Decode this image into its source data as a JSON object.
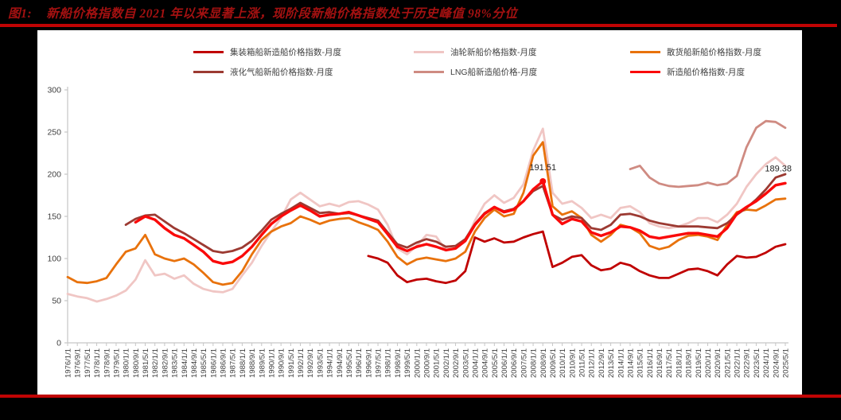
{
  "page": {
    "background": "#000000",
    "panel_background": "#FFFFFF",
    "rule_color": "#C00404",
    "title_color": "#A31111",
    "axis_color": "#C6C6C6",
    "tick_label_color": "#404040",
    "annotation_color": "#262626"
  },
  "figure": {
    "label": "图1:",
    "title": "新船价格指数自 2021 年以来显著上涨，现阶段新船价格指数处于历史峰值 98%分位"
  },
  "chart_data": {
    "type": "line",
    "title": "",
    "xlabel": "",
    "ylabel": "",
    "ylim": [
      0,
      300
    ],
    "yticks": [
      0,
      50,
      100,
      150,
      200,
      250,
      300
    ],
    "grid": false,
    "legend_position": "top",
    "x": [
      "1976/1/1",
      "1976/9/1",
      "1977/5/1",
      "1978/1/1",
      "1978/9/1",
      "1979/5/1",
      "1980/1/1",
      "1980/9/1",
      "1981/5/1",
      "1982/1/1",
      "1982/9/1",
      "1983/5/1",
      "1984/1/1",
      "1984/9/1",
      "1985/5/1",
      "1986/1/1",
      "1986/9/1",
      "1987/5/1",
      "1988/1/1",
      "1988/9/1",
      "1989/5/1",
      "1990/1/1",
      "1990/9/1",
      "1991/5/1",
      "1992/1/1",
      "1992/9/1",
      "1993/5/1",
      "1994/1/1",
      "1994/9/1",
      "1995/5/1",
      "1996/1/1",
      "1996/9/1",
      "1997/5/1",
      "1998/1/1",
      "1998/9/1",
      "1999/5/1",
      "2000/1/1",
      "2000/9/1",
      "2001/5/1",
      "2002/1/1",
      "2002/9/1",
      "2003/5/1",
      "2004/1/1",
      "2004/9/1",
      "2005/5/1",
      "2006/1/1",
      "2006/9/1",
      "2007/5/1",
      "2008/1/1",
      "2008/9/1",
      "2009/5/1",
      "2010/1/1",
      "2010/9/1",
      "2011/5/1",
      "2012/1/1",
      "2012/9/1",
      "2013/5/1",
      "2014/1/1",
      "2014/9/1",
      "2015/5/1",
      "2016/1/1",
      "2016/9/1",
      "2017/5/1",
      "2018/1/1",
      "2018/9/1",
      "2019/5/1",
      "2020/1/1",
      "2020/9/1",
      "2021/5/1",
      "2022/1/1",
      "2022/9/1",
      "2023/5/1",
      "2024/1/1",
      "2024/9/1",
      "2025/5/1"
    ],
    "series": [
      {
        "name": "集装箱船新造船价格指数-月度",
        "color": "#C00000",
        "values": [
          null,
          null,
          null,
          null,
          null,
          null,
          null,
          null,
          null,
          null,
          null,
          null,
          null,
          null,
          null,
          null,
          null,
          null,
          null,
          null,
          null,
          null,
          null,
          null,
          null,
          null,
          null,
          null,
          null,
          null,
          null,
          103,
          100,
          95,
          80,
          72,
          75,
          76,
          73,
          71,
          74,
          85,
          125,
          120,
          124,
          119,
          120,
          125,
          129,
          132,
          90,
          95,
          102,
          104,
          92,
          86,
          88,
          95,
          92,
          85,
          80,
          77,
          77,
          82,
          87,
          88,
          85,
          80,
          93,
          103,
          101,
          102,
          107,
          114,
          117
        ]
      },
      {
        "name": "油轮新船价格指数-月度",
        "color": "#F0C6C4",
        "values": [
          58,
          55,
          53,
          49,
          52,
          56,
          62,
          75,
          98,
          80,
          82,
          76,
          80,
          70,
          64,
          61,
          60,
          64,
          80,
          95,
          115,
          132,
          148,
          170,
          178,
          170,
          162,
          165,
          162,
          167,
          168,
          164,
          158,
          140,
          112,
          105,
          115,
          128,
          126,
          110,
          112,
          120,
          145,
          165,
          175,
          166,
          172,
          188,
          228,
          254,
          178,
          165,
          168,
          160,
          148,
          152,
          148,
          160,
          162,
          155,
          142,
          138,
          136,
          138,
          142,
          148,
          148,
          143,
          152,
          165,
          185,
          200,
          212,
          220,
          210
        ]
      },
      {
        "name": "散货船新船价格指数-月度",
        "color": "#E8720C",
        "values": [
          78,
          72,
          71,
          73,
          77,
          93,
          108,
          112,
          128,
          105,
          100,
          97,
          100,
          93,
          83,
          72,
          69,
          71,
          85,
          105,
          122,
          132,
          138,
          142,
          150,
          146,
          141,
          145,
          147,
          148,
          143,
          139,
          134,
          120,
          102,
          93,
          99,
          101,
          99,
          97,
          100,
          108,
          132,
          148,
          158,
          150,
          153,
          178,
          222,
          238,
          162,
          152,
          156,
          148,
          128,
          120,
          128,
          140,
          137,
          130,
          115,
          111,
          114,
          122,
          127,
          128,
          126,
          122,
          140,
          155,
          158,
          157,
          163,
          170,
          171
        ]
      },
      {
        "name": "液化气船新船价格指数-月度",
        "color": "#9C3A32",
        "values": [
          null,
          null,
          null,
          null,
          null,
          null,
          140,
          147,
          151,
          152,
          144,
          136,
          130,
          123,
          116,
          109,
          107,
          109,
          113,
          121,
          133,
          146,
          153,
          159,
          166,
          160,
          154,
          155,
          153,
          154,
          151,
          148,
          145,
          131,
          117,
          113,
          119,
          123,
          120,
          114,
          115,
          123,
          141,
          154,
          161,
          156,
          159,
          168,
          180,
          186,
          152,
          146,
          150,
          148,
          136,
          134,
          140,
          152,
          153,
          150,
          145,
          142,
          140,
          138,
          138,
          138,
          137,
          136,
          142,
          152,
          160,
          170,
          182,
          196,
          200
        ]
      },
      {
        "name": "LNG船新造船价格-月度",
        "color": "#CF8B82",
        "values": [
          null,
          null,
          null,
          null,
          null,
          null,
          null,
          null,
          null,
          null,
          null,
          null,
          null,
          null,
          null,
          null,
          null,
          null,
          null,
          null,
          null,
          null,
          null,
          null,
          null,
          null,
          null,
          null,
          null,
          null,
          null,
          null,
          null,
          null,
          null,
          null,
          null,
          null,
          null,
          null,
          null,
          null,
          null,
          null,
          null,
          null,
          null,
          null,
          null,
          null,
          null,
          null,
          null,
          null,
          null,
          null,
          null,
          null,
          206,
          210,
          196,
          189,
          186,
          185,
          186,
          187,
          190,
          187,
          189,
          198,
          232,
          255,
          263,
          262,
          255
        ]
      },
      {
        "name": "新造船价格指数-月度",
        "color": "#FA0A0A",
        "values": [
          null,
          null,
          null,
          null,
          null,
          null,
          null,
          143,
          150,
          146,
          136,
          128,
          124,
          116,
          108,
          97,
          94,
          96,
          103,
          114,
          128,
          141,
          150,
          157,
          163,
          157,
          150,
          152,
          153,
          155,
          151,
          147,
          143,
          129,
          114,
          109,
          114,
          117,
          114,
          110,
          112,
          121,
          140,
          153,
          161,
          155,
          158,
          168,
          182,
          191.51,
          152,
          141,
          147,
          144,
          131,
          127,
          131,
          138,
          137,
          133,
          126,
          124,
          126,
          128,
          130,
          130,
          128,
          126,
          136,
          153,
          161,
          168,
          177,
          187,
          189.38
        ]
      }
    ],
    "annotations": [
      {
        "text": "191.51",
        "x": "2008/9/1",
        "y": 191.51,
        "marker": true
      },
      {
        "text": "189.38",
        "x": "2025/5/1",
        "y": 189.38,
        "marker": false
      }
    ]
  }
}
